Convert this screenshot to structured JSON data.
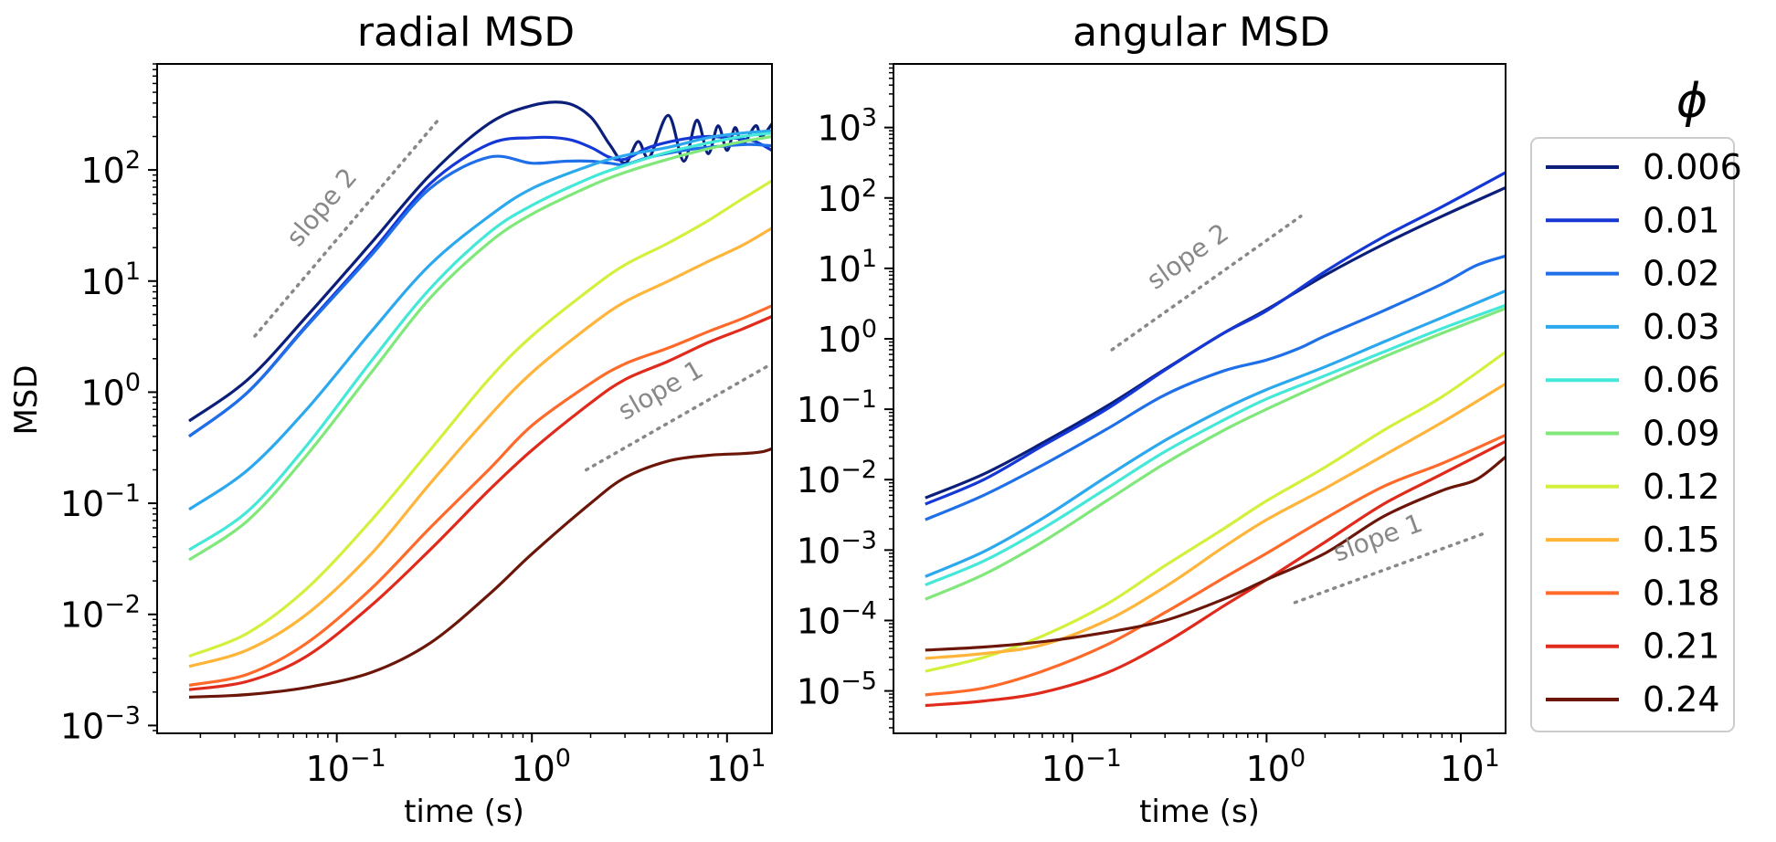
{
  "chart_data": [
    {
      "type": "line",
      "title": "radial MSD",
      "xlabel": "time (s)",
      "ylabel": "MSD",
      "xscale": "log",
      "yscale": "log",
      "xlim": [
        0.012,
        17
      ],
      "ylim": [
        0.00085,
        900
      ],
      "yticks": [
        {
          "label": "10",
          "exp": "−3",
          "value": 0.001
        },
        {
          "label": "10",
          "exp": "−2",
          "value": 0.01
        },
        {
          "label": "10",
          "exp": "−1",
          "value": 0.1
        },
        {
          "label": "10",
          "exp": "0",
          "value": 1
        },
        {
          "label": "10",
          "exp": "1",
          "value": 10
        },
        {
          "label": "10",
          "exp": "2",
          "value": 100
        }
      ],
      "xticks": [
        {
          "label": "10",
          "exp": "−1",
          "value": 0.1
        },
        {
          "label": "10",
          "exp": "0",
          "value": 1
        },
        {
          "label": "10",
          "exp": "1",
          "value": 10
        }
      ],
      "annotations": [
        {
          "text": "slope 2",
          "x": [
            0.038,
            0.33
          ],
          "y": [
            3.2,
            280
          ]
        },
        {
          "text": "slope 1",
          "x": [
            1.9,
            16
          ],
          "y": [
            0.2,
            1.7
          ]
        }
      ],
      "series": [
        {
          "name": "0.006",
          "x": [
            0.0175,
            0.035,
            0.07,
            0.15,
            0.3,
            0.6,
            1.0,
            1.5,
            2.0,
            2.5,
            3.0,
            3.5,
            4.0,
            5.0,
            6.0,
            7.0,
            8.0,
            9.0,
            10.0,
            11.0,
            12.0,
            14.0,
            15.0,
            17.0
          ],
          "values": [
            0.55,
            1.3,
            4.8,
            22,
            90,
            260,
            380,
            400,
            300,
            170,
            115,
            180,
            130,
            310,
            120,
            280,
            140,
            250,
            150,
            240,
            170,
            250,
            200,
            260
          ]
        },
        {
          "name": "0.01",
          "x": [
            0.0175,
            0.035,
            0.07,
            0.15,
            0.3,
            0.6,
            1.0,
            1.5,
            2.0,
            2.5,
            3.0,
            4.0,
            6.0,
            8.0,
            10.0,
            12.0,
            14.0,
            17.0
          ],
          "values": [
            0.4,
            1.0,
            4.0,
            18,
            75,
            170,
            195,
            190,
            160,
            130,
            125,
            160,
            190,
            200,
            195,
            190,
            180,
            150
          ]
        },
        {
          "name": "0.02",
          "x": [
            0.0175,
            0.035,
            0.07,
            0.15,
            0.3,
            0.6,
            1.0,
            1.5,
            2.0,
            2.5,
            3.0,
            4.0,
            6.0,
            8.0,
            10.0,
            13.0,
            17.0
          ],
          "values": [
            0.4,
            1.0,
            3.9,
            17,
            68,
            130,
            115,
            120,
            120,
            115,
            112,
            130,
            150,
            160,
            165,
            170,
            165
          ]
        },
        {
          "name": "0.03",
          "x": [
            0.0175,
            0.035,
            0.07,
            0.15,
            0.3,
            0.6,
            1.0,
            2.0,
            3.0,
            5.0,
            8.0,
            12.0,
            17.0
          ],
          "values": [
            0.088,
            0.2,
            0.7,
            3.5,
            14,
            38,
            68,
            110,
            135,
            160,
            195,
            215,
            225
          ]
        },
        {
          "name": "0.06",
          "x": [
            0.0175,
            0.035,
            0.07,
            0.15,
            0.3,
            0.6,
            1.0,
            2.0,
            3.0,
            5.0,
            8.0,
            12.0,
            17.0
          ],
          "values": [
            0.038,
            0.085,
            0.33,
            1.9,
            8.5,
            27,
            48,
            85,
            110,
            145,
            175,
            200,
            215
          ]
        },
        {
          "name": "0.09",
          "x": [
            0.0175,
            0.035,
            0.07,
            0.15,
            0.3,
            0.6,
            1.0,
            2.0,
            3.0,
            5.0,
            8.0,
            12.0,
            17.0
          ],
          "values": [
            0.031,
            0.07,
            0.27,
            1.5,
            7,
            22,
            40,
            72,
            95,
            125,
            155,
            180,
            200
          ]
        },
        {
          "name": "0.12",
          "x": [
            0.0175,
            0.035,
            0.07,
            0.15,
            0.3,
            0.6,
            1.0,
            2.0,
            3.0,
            5.0,
            8.0,
            12.0,
            17.0
          ],
          "values": [
            0.0042,
            0.0068,
            0.017,
            0.07,
            0.3,
            1.3,
            3.2,
            8.5,
            14,
            22,
            35,
            55,
            80
          ]
        },
        {
          "name": "0.15",
          "x": [
            0.0175,
            0.035,
            0.07,
            0.15,
            0.3,
            0.6,
            1.0,
            2.0,
            3.0,
            5.0,
            8.0,
            12.0,
            17.0
          ],
          "values": [
            0.0034,
            0.0048,
            0.01,
            0.035,
            0.15,
            0.6,
            1.5,
            4.0,
            6.5,
            10,
            15,
            21,
            30
          ]
        },
        {
          "name": "0.18",
          "x": [
            0.0175,
            0.035,
            0.07,
            0.15,
            0.3,
            0.6,
            1.0,
            2.0,
            3.0,
            5.0,
            8.0,
            12.0,
            17.0
          ],
          "values": [
            0.0023,
            0.0029,
            0.0055,
            0.017,
            0.06,
            0.2,
            0.5,
            1.2,
            1.8,
            2.5,
            3.5,
            4.6,
            6.0
          ]
        },
        {
          "name": "0.21",
          "x": [
            0.0175,
            0.035,
            0.07,
            0.15,
            0.3,
            0.6,
            1.0,
            2.0,
            3.0,
            5.0,
            8.0,
            12.0,
            17.0
          ],
          "values": [
            0.0021,
            0.0025,
            0.0042,
            0.012,
            0.038,
            0.13,
            0.3,
            0.8,
            1.3,
            1.9,
            2.8,
            3.7,
            4.8
          ]
        },
        {
          "name": "0.24",
          "x": [
            0.0175,
            0.035,
            0.07,
            0.15,
            0.3,
            0.6,
            1.0,
            2.0,
            3.0,
            5.0,
            8.0,
            12.0,
            15.0,
            17.0
          ],
          "values": [
            0.0018,
            0.0019,
            0.0022,
            0.003,
            0.0055,
            0.015,
            0.035,
            0.1,
            0.17,
            0.24,
            0.27,
            0.28,
            0.29,
            0.31
          ]
        }
      ]
    },
    {
      "type": "line",
      "title": "angular MSD",
      "xlabel": "time (s)",
      "ylabel": "",
      "xscale": "log",
      "yscale": "log",
      "xlim": [
        0.012,
        17
      ],
      "ylim": [
        2.5e-06,
        8000
      ],
      "yticks": [
        {
          "label": "10",
          "exp": "−5",
          "value": 1e-05
        },
        {
          "label": "10",
          "exp": "−4",
          "value": 0.0001
        },
        {
          "label": "10",
          "exp": "−3",
          "value": 0.001
        },
        {
          "label": "10",
          "exp": "−2",
          "value": 0.01
        },
        {
          "label": "10",
          "exp": "−1",
          "value": 0.1
        },
        {
          "label": "10",
          "exp": "0",
          "value": 1
        },
        {
          "label": "10",
          "exp": "1",
          "value": 10
        },
        {
          "label": "10",
          "exp": "2",
          "value": 100
        },
        {
          "label": "10",
          "exp": "3",
          "value": 1000
        }
      ],
      "xticks": [
        {
          "label": "10",
          "exp": "−1",
          "value": 0.1
        },
        {
          "label": "10",
          "exp": "0",
          "value": 1
        },
        {
          "label": "10",
          "exp": "1",
          "value": 10
        }
      ],
      "annotations": [
        {
          "text": "slope 2",
          "x": [
            0.16,
            1.5
          ],
          "y": [
            0.7,
            55
          ]
        },
        {
          "text": "slope 1",
          "x": [
            1.4,
            13
          ],
          "y": [
            0.00018,
            0.0017
          ]
        }
      ],
      "series": [
        {
          "name": "0.006",
          "x": [
            0.0175,
            0.035,
            0.07,
            0.15,
            0.3,
            0.6,
            1.0,
            2.0,
            4.0,
            8.0,
            17.0
          ],
          "values": [
            0.0055,
            0.012,
            0.033,
            0.11,
            0.37,
            1.2,
            2.6,
            8,
            22,
            55,
            140
          ]
        },
        {
          "name": "0.01",
          "x": [
            0.0175,
            0.035,
            0.07,
            0.15,
            0.3,
            0.6,
            1.0,
            2.0,
            4.0,
            8.0,
            17.0
          ],
          "values": [
            0.0045,
            0.01,
            0.03,
            0.1,
            0.36,
            1.2,
            2.5,
            9,
            28,
            75,
            230
          ]
        },
        {
          "name": "0.02",
          "x": [
            0.0175,
            0.035,
            0.07,
            0.15,
            0.3,
            0.6,
            1.0,
            1.5,
            2.0,
            4.0,
            8.0,
            12.0,
            17.0
          ],
          "values": [
            0.0027,
            0.006,
            0.016,
            0.052,
            0.16,
            0.35,
            0.5,
            0.75,
            1.1,
            2.5,
            6,
            11,
            15
          ]
        },
        {
          "name": "0.03",
          "x": [
            0.0175,
            0.035,
            0.07,
            0.15,
            0.3,
            0.6,
            1.0,
            2.0,
            4.0,
            8.0,
            17.0
          ],
          "values": [
            0.00042,
            0.00095,
            0.0028,
            0.011,
            0.036,
            0.1,
            0.19,
            0.4,
            0.9,
            2.0,
            4.8
          ]
        },
        {
          "name": "0.06",
          "x": [
            0.0175,
            0.035,
            0.07,
            0.15,
            0.3,
            0.6,
            1.0,
            2.0,
            4.0,
            8.0,
            17.0
          ],
          "values": [
            0.00032,
            0.0007,
            0.002,
            0.0075,
            0.025,
            0.07,
            0.14,
            0.3,
            0.65,
            1.4,
            3.0
          ]
        },
        {
          "name": "0.09",
          "x": [
            0.0175,
            0.035,
            0.07,
            0.15,
            0.3,
            0.6,
            1.0,
            2.0,
            4.0,
            8.0,
            17.0
          ],
          "values": [
            0.0002,
            0.00045,
            0.0013,
            0.005,
            0.017,
            0.05,
            0.1,
            0.24,
            0.55,
            1.2,
            2.7
          ]
        },
        {
          "name": "0.12",
          "x": [
            0.0175,
            0.035,
            0.07,
            0.15,
            0.3,
            0.6,
            1.0,
            2.0,
            4.0,
            8.0,
            17.0
          ],
          "values": [
            1.9e-05,
            3e-05,
            6e-05,
            0.00017,
            0.0006,
            0.002,
            0.005,
            0.015,
            0.05,
            0.15,
            0.65
          ]
        },
        {
          "name": "0.15",
          "x": [
            0.0175,
            0.035,
            0.07,
            0.15,
            0.3,
            0.6,
            1.0,
            2.0,
            4.0,
            8.0,
            17.0
          ],
          "values": [
            2.9e-05,
            3.4e-05,
            4.5e-05,
            0.0001,
            0.0003,
            0.0011,
            0.0027,
            0.0075,
            0.022,
            0.065,
            0.23
          ]
        },
        {
          "name": "0.18",
          "x": [
            0.0175,
            0.035,
            0.07,
            0.15,
            0.3,
            0.6,
            1.0,
            2.0,
            4.0,
            8.0,
            17.0
          ],
          "values": [
            8.8e-06,
            1.1e-05,
            1.9e-05,
            4.5e-05,
            0.00013,
            0.0004,
            0.0009,
            0.0028,
            0.008,
            0.017,
            0.043
          ]
        },
        {
          "name": "0.21",
          "x": [
            0.0175,
            0.035,
            0.07,
            0.15,
            0.3,
            0.6,
            1.0,
            2.0,
            4.0,
            8.0,
            17.0
          ],
          "values": [
            6.2e-06,
            7.2e-06,
            9.5e-06,
            1.8e-05,
            4.8e-05,
            0.00016,
            0.00038,
            0.0013,
            0.0045,
            0.012,
            0.035
          ]
        },
        {
          "name": "0.24",
          "x": [
            0.0175,
            0.035,
            0.07,
            0.15,
            0.3,
            0.6,
            1.0,
            2.0,
            4.0,
            8.0,
            12.0,
            17.0
          ],
          "values": [
            3.8e-05,
            4.2e-05,
            5e-05,
            6.8e-05,
            0.0001,
            0.0002,
            0.00038,
            0.0009,
            0.003,
            0.007,
            0.01,
            0.021
          ]
        }
      ]
    }
  ],
  "legend": {
    "title": "ϕ",
    "placement": "right",
    "entries": [
      "0.006",
      "0.01",
      "0.02",
      "0.03",
      "0.06",
      "0.09",
      "0.12",
      "0.15",
      "0.18",
      "0.21",
      "0.24"
    ],
    "colors": [
      "#0b1f7a",
      "#1437d6",
      "#1f6fe8",
      "#2ba8ee",
      "#44e8d8",
      "#80e87a",
      "#d4ef3c",
      "#ffb43a",
      "#ff6a2a",
      "#e02a1c",
      "#6b1608"
    ]
  }
}
